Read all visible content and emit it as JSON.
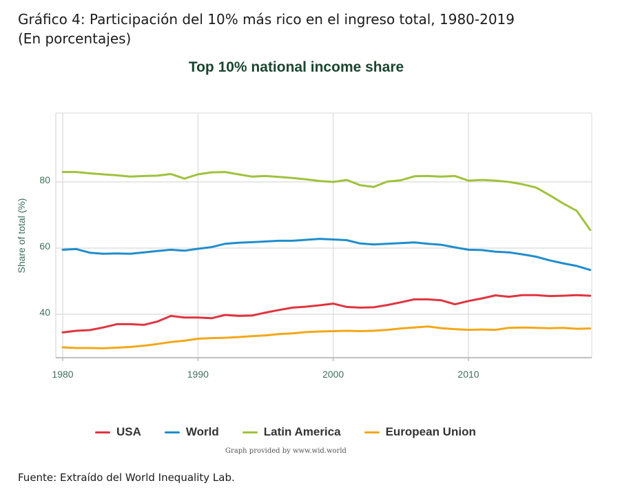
{
  "figure": {
    "title_line1": "Gráfico 4: Participación del 10% más rico en el ingreso total, 1980-2019",
    "title_line2": "(En porcentajes)",
    "source": "Fuente: Extraído del World Inequality Lab."
  },
  "chart_data": {
    "type": "line",
    "title": "Top 10% national income share",
    "xlabel": "",
    "ylabel": "Share of total (%)",
    "xlim": [
      1980,
      2019
    ],
    "ylim": [
      27,
      101
    ],
    "x_ticks": [
      1980,
      1990,
      2000,
      2010
    ],
    "y_ticks": [
      40,
      60,
      80
    ],
    "grid": true,
    "legend_position": "bottom",
    "credit": "Graph provided by www.wid.world",
    "x": [
      1980,
      1981,
      1982,
      1983,
      1984,
      1985,
      1986,
      1987,
      1988,
      1989,
      1990,
      1991,
      1992,
      1993,
      1994,
      1995,
      1996,
      1997,
      1998,
      1999,
      2000,
      2001,
      2002,
      2003,
      2004,
      2005,
      2006,
      2007,
      2008,
      2009,
      2010,
      2011,
      2012,
      2013,
      2014,
      2015,
      2016,
      2017,
      2018,
      2019
    ],
    "series": [
      {
        "name": "USA",
        "color": "#e0343f",
        "values": [
          34.5,
          35.0,
          35.2,
          36.0,
          37.0,
          37.0,
          36.8,
          37.8,
          39.5,
          39.0,
          39.0,
          38.8,
          39.8,
          39.5,
          39.6,
          40.5,
          41.3,
          42.0,
          42.3,
          42.7,
          43.2,
          42.2,
          42.0,
          42.1,
          42.8,
          43.6,
          44.5,
          44.5,
          44.2,
          43.0,
          44.0,
          44.8,
          45.7,
          45.3,
          45.8,
          45.8,
          45.5,
          45.6,
          45.8,
          45.6
        ]
      },
      {
        "name": "World",
        "color": "#1f8dcc",
        "values": [
          59.5,
          59.7,
          58.6,
          58.3,
          58.4,
          58.3,
          58.7,
          59.1,
          59.5,
          59.2,
          59.8,
          60.3,
          61.3,
          61.6,
          61.8,
          62.0,
          62.2,
          62.2,
          62.5,
          62.8,
          62.6,
          62.4,
          61.4,
          61.1,
          61.3,
          61.5,
          61.7,
          61.3,
          61.0,
          60.2,
          59.5,
          59.4,
          58.9,
          58.7,
          58.1,
          57.4,
          56.3,
          55.4,
          54.6,
          53.4
        ]
      },
      {
        "name": "Latin America",
        "color": "#9fc23c",
        "values": [
          83.0,
          83.0,
          82.6,
          82.3,
          82.0,
          81.6,
          81.8,
          81.9,
          82.4,
          81.0,
          82.3,
          82.9,
          83.0,
          82.3,
          81.6,
          81.8,
          81.5,
          81.2,
          80.8,
          80.3,
          80.0,
          80.6,
          79.0,
          78.5,
          80.1,
          80.5,
          81.7,
          81.8,
          81.6,
          81.8,
          80.4,
          80.6,
          80.4,
          80.0,
          79.3,
          78.3,
          76.0,
          73.5,
          71.3,
          65.5
        ]
      },
      {
        "name": "European Union",
        "color": "#f3a717",
        "values": [
          30.0,
          29.8,
          29.8,
          29.7,
          29.9,
          30.1,
          30.5,
          31.0,
          31.6,
          32.0,
          32.6,
          32.8,
          32.9,
          33.1,
          33.4,
          33.6,
          34.0,
          34.2,
          34.6,
          34.8,
          34.9,
          35.0,
          34.9,
          35.0,
          35.3,
          35.7,
          36.0,
          36.3,
          35.8,
          35.5,
          35.3,
          35.4,
          35.3,
          35.9,
          36.0,
          35.9,
          35.8,
          35.9,
          35.6,
          35.7
        ]
      }
    ]
  }
}
